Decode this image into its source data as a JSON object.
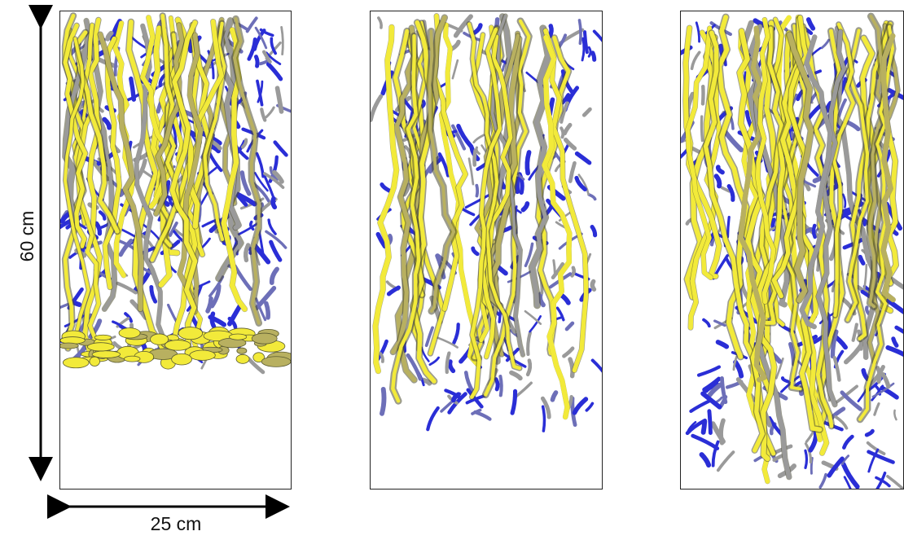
{
  "figure": {
    "height_dimension": "60 cm",
    "width_dimension": "25 cm",
    "root_colors": {
      "yellow": "#f2ea3a",
      "yellow_shade": "#c8c01e",
      "olive": "#b8b060",
      "blue": "#2a2ed6",
      "slate": "#6d6fb8",
      "grey": "#9a9a9a"
    },
    "panels": [
      {
        "id": "panel-1",
        "root_depth_fraction": 0.74,
        "density": 1.0
      },
      {
        "id": "panel-2",
        "root_depth_fraction": 0.85,
        "density": 0.8
      },
      {
        "id": "panel-3",
        "root_depth_fraction": 0.99,
        "density": 1.1
      }
    ]
  }
}
